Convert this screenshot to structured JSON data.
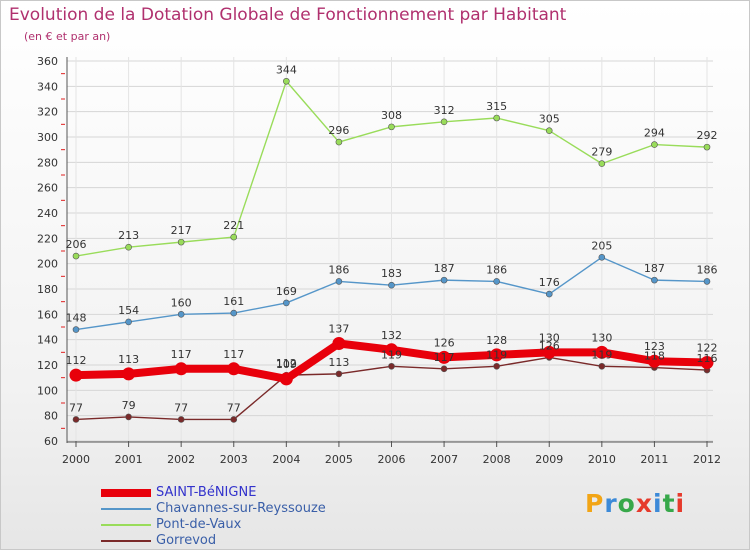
{
  "title": "Evolution de la Dotation Globale de Fonctionnement par Habitant",
  "subtitle": "(en € et par an)",
  "logo": {
    "text": "Proxiti",
    "colors": [
      "#f2a516",
      "#3c8ad8",
      "#37a84a",
      "#e63a2c",
      "#3c8ad8",
      "#37a84a",
      "#e63a2c"
    ]
  },
  "chart_data": {
    "type": "line",
    "x": [
      "2000",
      "2001",
      "2002",
      "2003",
      "2004",
      "2005",
      "2006",
      "2007",
      "2008",
      "2009",
      "2010",
      "2011",
      "2012"
    ],
    "ylim": [
      60,
      360
    ],
    "yticks": [
      60,
      80,
      100,
      120,
      140,
      160,
      180,
      200,
      220,
      240,
      260,
      280,
      300,
      320,
      340,
      360
    ],
    "grid": true,
    "series": [
      {
        "name": "SAINT-BéNIGNE",
        "color": "#e8000b",
        "values": [
          112,
          113,
          117,
          117,
          109,
          137,
          132,
          126,
          128,
          130,
          130,
          123,
          122
        ],
        "highlight": true
      },
      {
        "name": "Chavannes-sur-Reyssouze",
        "color": "#5596c9",
        "values": [
          148,
          154,
          160,
          161,
          169,
          186,
          183,
          187,
          186,
          176,
          205,
          187,
          186
        ]
      },
      {
        "name": "Pont-de-Vaux",
        "color": "#99dc5a",
        "values": [
          206,
          213,
          217,
          221,
          344,
          296,
          308,
          312,
          315,
          305,
          279,
          294,
          292
        ]
      },
      {
        "name": "Gorrevod",
        "color": "#7a2a2a",
        "values": [
          77,
          79,
          77,
          77,
          112,
          113,
          119,
          117,
          119,
          126,
          119,
          118,
          116
        ]
      }
    ]
  }
}
